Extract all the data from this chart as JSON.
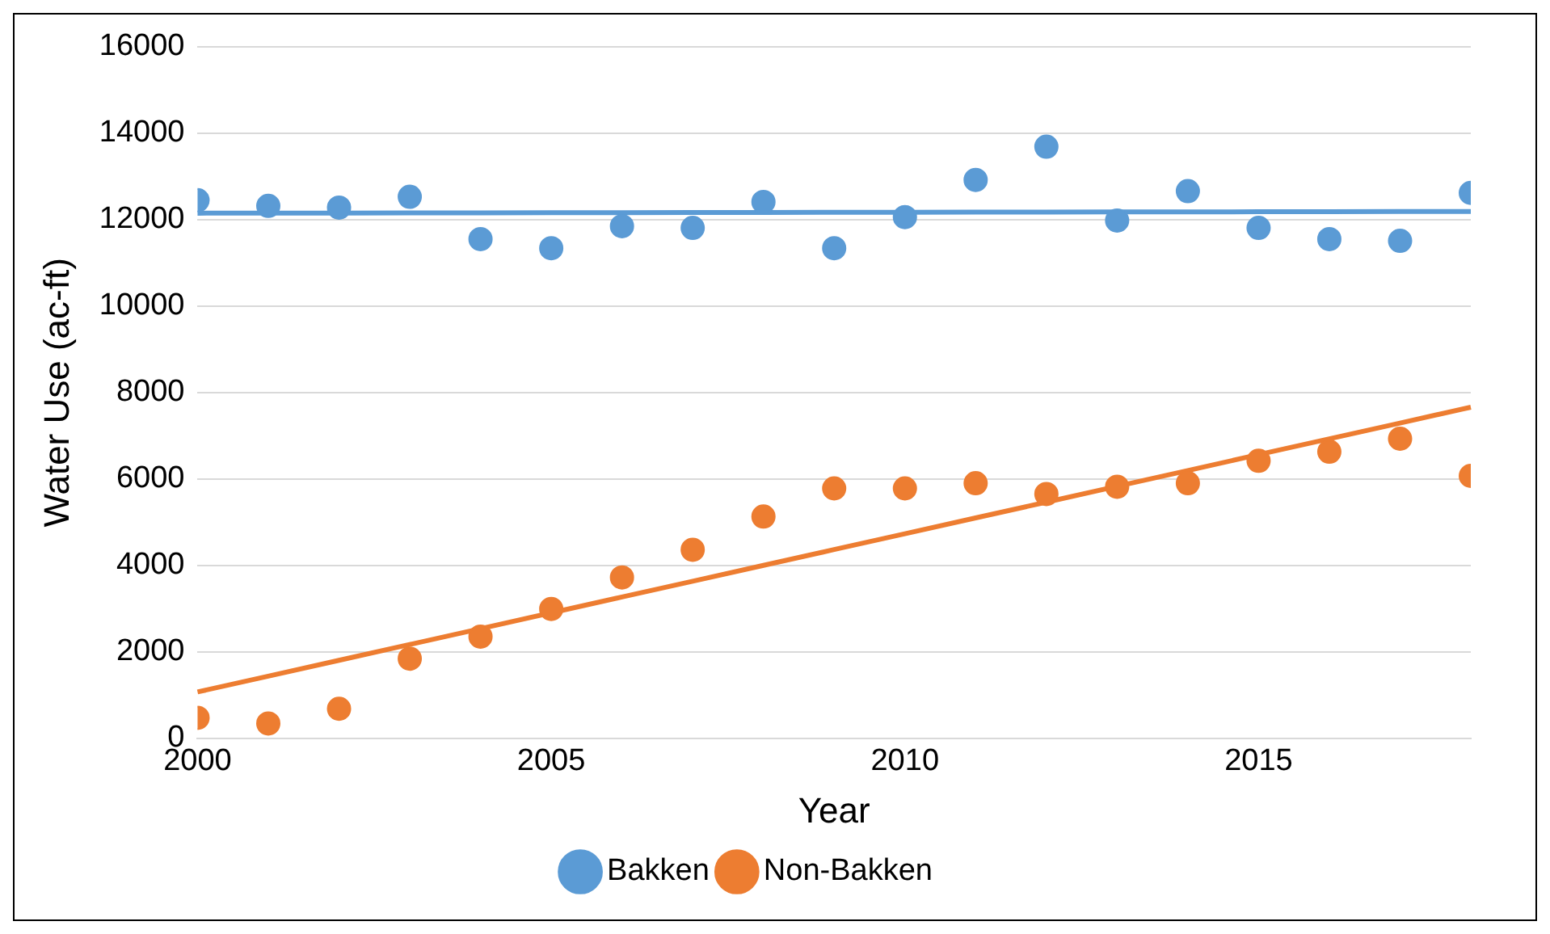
{
  "chart_data": {
    "type": "scatter",
    "xlabel": "Year",
    "ylabel": "Water Use (ac-ft)",
    "x": [
      2000,
      2001,
      2002,
      2003,
      2004,
      2005,
      2006,
      2007,
      2008,
      2009,
      2010,
      2011,
      2012,
      2013,
      2014,
      2015,
      2016,
      2017,
      2018
    ],
    "series": [
      {
        "name": "Bakken",
        "color": "#5b9bd5",
        "values": [
          12450,
          12320,
          12280,
          12530,
          11550,
          11340,
          11850,
          11810,
          12410,
          11340,
          12060,
          12920,
          13690,
          11980,
          12660,
          11810,
          11550,
          11510,
          12620
        ]
      },
      {
        "name": "Non-Bakken",
        "color": "#ed7d31",
        "values": [
          470,
          340,
          680,
          1840,
          2350,
          2990,
          3720,
          4360,
          5130,
          5780,
          5780,
          5900,
          5650,
          5820,
          5900,
          6420,
          6630,
          6930,
          6070
        ]
      },
      {
        "type": "line",
        "color": "#5b9bd5",
        "marker": "none",
        "values": [
          12150,
          12152,
          12154,
          12157,
          12159,
          12161,
          12163,
          12166,
          12168,
          12170,
          12172,
          12174,
          12177,
          12179,
          12181,
          12183,
          12186,
          12188,
          12190
        ]
      },
      {
        "type": "line",
        "color": "#ed7d31",
        "marker": "none",
        "values": [
          1070,
          1436,
          1802,
          2168,
          2534,
          2901,
          3267,
          3633,
          3999,
          4365,
          4731,
          5097,
          5463,
          5829,
          6195,
          6562,
          6928,
          7294,
          7660
        ]
      }
    ],
    "xlim": [
      2000,
      2018
    ],
    "xticks": [
      2000,
      2005,
      2010,
      2015
    ],
    "ylim": [
      0,
      16000
    ],
    "yticks": [
      0,
      2000,
      4000,
      6000,
      8000,
      10000,
      12000,
      14000,
      16000
    ],
    "grid": "y",
    "legend": "bottom",
    "marker": "circle"
  }
}
